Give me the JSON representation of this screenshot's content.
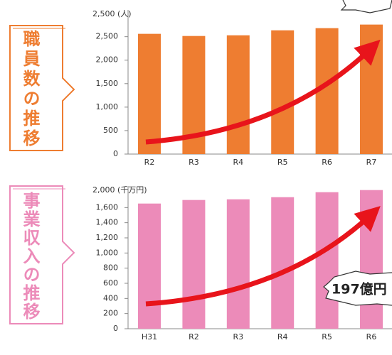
{
  "chart_data": [
    {
      "type": "bar",
      "title": "職員数の推移",
      "unit_label": "2,500 (人)",
      "categories": [
        "R2",
        "R3",
        "R4",
        "R5",
        "R6",
        "R7"
      ],
      "values": [
        2561,
        2515,
        2530,
        2636,
        2682,
        2758
      ],
      "color": "#ee7d31",
      "ylim": [
        0,
        3100
      ],
      "yticks": [
        0,
        {
          "value": 500,
          "label": "500"
        },
        {
          "value": 1000,
          "label": "1,000"
        },
        {
          "value": 1500,
          "label": "1,500"
        },
        {
          "value": 2000,
          "label": "2,000"
        },
        {
          "value": 2500,
          "label": "2,500"
        }
      ]
    },
    {
      "type": "bar",
      "title": "事業収入の推移",
      "unit_label": "2,000 (千万円)",
      "annotation": "197億円",
      "categories": [
        "H31",
        "R2",
        "R3",
        "R4",
        "R5",
        "R6"
      ],
      "values": [
        1653,
        1700,
        1709,
        1737,
        1803,
        1831
      ],
      "color": "#ec8bb9",
      "ylim": [
        0,
        1950
      ],
      "yticks": [
        0,
        200,
        400,
        600,
        800,
        {
          "value": 1000,
          "label": "1,000"
        },
        {
          "value": 1200,
          "label": "1,200"
        },
        {
          "value": 1400,
          "label": "1,400"
        },
        {
          "value": 1600,
          "label": "1,600"
        }
      ]
    }
  ]
}
